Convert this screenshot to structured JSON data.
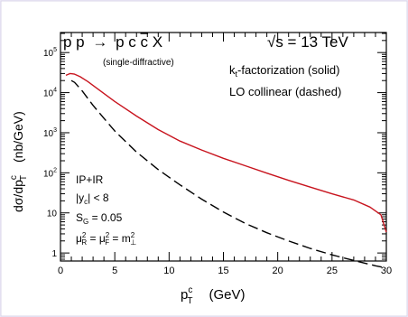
{
  "chart_data": {
    "type": "line",
    "process": {
      "left": "p p",
      "arrow": "→",
      "right_pre": "p c ",
      "right_cbar": "c",
      "right_post": " X",
      "note": "(single-diffractive)"
    },
    "energy": {
      "prefix": "√s = ",
      "value": "13 TeV"
    },
    "legend": {
      "kt_k": "k",
      "kt_sub": "t",
      "kt_rest": "-factorization (solid)",
      "lo": "LO collinear (dashed)"
    },
    "params": {
      "exchange": "IP+IR",
      "yc_cond": "< 8",
      "sg_label": "S",
      "sg_sub": "G",
      "sg_value": " = 0.05",
      "scale_label": "μ",
      "scale_r_sub": "R",
      "scale_f_sub": "F",
      "scale_mid": " = μ",
      "scale_eq": " = m",
      "scale_perp": "⊥",
      "sup2": "2"
    },
    "ylabel": {
      "main": "dσ/dp",
      "sup": "c",
      "sub": "T",
      "unit": "(nb/GeV)"
    },
    "xlabel": {
      "main": "p",
      "sup": "c",
      "sub": "T",
      "unit": "(GeV)"
    },
    "x_range": [
      0,
      30
    ],
    "y_range_log10": [
      -0.2,
      5.5
    ],
    "y_scale": "log",
    "x_ticks": [
      "0",
      "5",
      "10",
      "15",
      "20",
      "25",
      "30"
    ],
    "y_ticks": [
      {
        "base": "10",
        "exp": "5"
      },
      {
        "base": "10",
        "exp": "4"
      },
      {
        "base": "10",
        "exp": "3"
      },
      {
        "base": "10",
        "exp": "2"
      },
      {
        "base": "10",
        "exp": ""
      },
      {
        "base": "1",
        "exp": ""
      }
    ],
    "series": [
      {
        "style": "solid",
        "color": "#c8141e",
        "x": [
          0.5,
          0.9,
          1.3,
          1.8,
          2.5,
          3.5,
          5,
          7,
          9,
          11,
          13,
          15,
          17,
          19,
          21,
          23,
          25,
          27,
          28.5,
          29.5,
          30
        ],
        "y": [
          27000,
          30000,
          29000,
          25000,
          19000,
          12000,
          6000,
          2600,
          1200,
          620,
          370,
          230,
          150,
          98,
          65,
          44,
          30,
          21,
          14,
          9,
          3.3
        ]
      },
      {
        "style": "dashed",
        "color": "#000000",
        "x": [
          1.0,
          1.3,
          2,
          3,
          4,
          5,
          7,
          9,
          11,
          13,
          15,
          17,
          19,
          21,
          23,
          25,
          27,
          29,
          30
        ],
        "y": [
          20000,
          18000,
          11000,
          4800,
          2300,
          1100,
          330,
          120,
          50,
          22,
          10.5,
          5.5,
          3.2,
          2.0,
          1.3,
          0.9,
          0.65,
          0.48,
          0.42
        ]
      }
    ]
  }
}
